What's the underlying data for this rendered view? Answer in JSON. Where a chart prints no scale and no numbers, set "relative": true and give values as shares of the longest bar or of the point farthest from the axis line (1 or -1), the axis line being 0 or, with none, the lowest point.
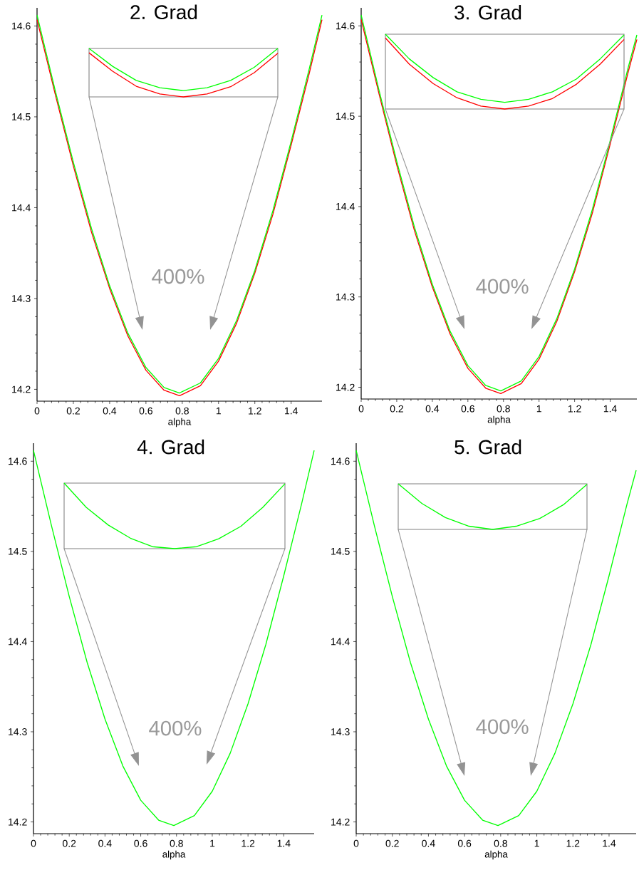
{
  "chart_data": [
    {
      "type": "line",
      "title": "2. Grad",
      "xlabel": "alpha",
      "x": [
        0,
        0.1,
        0.2,
        0.3,
        0.4,
        0.5,
        0.6,
        0.7,
        0.785,
        0.9,
        1.0,
        1.1,
        1.2,
        1.3,
        1.4,
        1.5,
        1.57
      ],
      "series": [
        {
          "color": "#ff0000",
          "values": [
            14.607,
            14.525,
            14.446,
            14.373,
            14.311,
            14.259,
            14.221,
            14.199,
            14.193,
            14.204,
            14.231,
            14.273,
            14.328,
            14.393,
            14.469,
            14.548,
            14.607
          ]
        },
        {
          "color": "#00ff00",
          "values": [
            14.612,
            14.529,
            14.45,
            14.377,
            14.314,
            14.262,
            14.224,
            14.202,
            14.196,
            14.207,
            14.234,
            14.276,
            14.331,
            14.397,
            14.473,
            14.553,
            14.612
          ]
        }
      ],
      "xlim": [
        0,
        1.57
      ],
      "ylim": [
        14.187,
        14.62
      ],
      "xticks": [
        0,
        0.2,
        0.4,
        0.6,
        0.8,
        1,
        1.2,
        1.4
      ],
      "yticks": [
        14.2,
        14.3,
        14.4,
        14.5,
        14.6
      ],
      "annotations": [
        "400%"
      ]
    },
    {
      "type": "line",
      "relative": true,
      "tick_labels": false,
      "categories": [
        null,
        null,
        null,
        null,
        null,
        null,
        null,
        null,
        null
      ],
      "series": [
        {
          "color": "#ff0000",
          "values": [
            0.91,
            0.53,
            0.22,
            0.06,
            0,
            0.06,
            0.21,
            0.5,
            0.9
          ]
        },
        {
          "color": "#00ff00",
          "values": [
            1,
            0.63,
            0.34,
            0.19,
            0.13,
            0.19,
            0.34,
            0.61,
            1
          ]
        }
      ]
    },
    {
      "type": "line",
      "title": "3. Grad",
      "xlabel": "alpha",
      "x": [
        0,
        0.1,
        0.2,
        0.3,
        0.4,
        0.5,
        0.6,
        0.7,
        0.785,
        0.9,
        1.0,
        1.1,
        1.2,
        1.3,
        1.4,
        1.5,
        1.55
      ],
      "series": [
        {
          "color": "#ff0000",
          "values": [
            14.607,
            14.525,
            14.446,
            14.373,
            14.311,
            14.259,
            14.221,
            14.199,
            14.193,
            14.204,
            14.231,
            14.273,
            14.328,
            14.393,
            14.469,
            14.548,
            14.585
          ]
        },
        {
          "color": "#00ff00",
          "values": [
            14.612,
            14.529,
            14.45,
            14.377,
            14.314,
            14.262,
            14.224,
            14.202,
            14.196,
            14.207,
            14.234,
            14.276,
            14.331,
            14.397,
            14.473,
            14.553,
            14.59
          ]
        }
      ],
      "xlim": [
        0,
        1.55
      ],
      "ylim": [
        14.187,
        14.62
      ],
      "xticks": [
        0,
        0.2,
        0.4,
        0.6,
        0.8,
        1,
        1.2,
        1.4
      ],
      "yticks": [
        14.2,
        14.3,
        14.4,
        14.5,
        14.6
      ],
      "annotations": [
        "400%"
      ]
    },
    {
      "type": "line",
      "relative": true,
      "tick_labels": false,
      "categories": [
        null,
        null,
        null,
        null,
        null,
        null,
        null,
        null,
        null,
        null,
        null
      ],
      "series": [
        {
          "color": "#ff0000",
          "values": [
            0.95,
            0.6,
            0.34,
            0.15,
            0.04,
            0,
            0.04,
            0.14,
            0.33,
            0.6,
            0.93
          ]
        },
        {
          "color": "#00ff00",
          "values": [
            1,
            0.67,
            0.42,
            0.23,
            0.13,
            0.09,
            0.13,
            0.23,
            0.4,
            0.67,
            0.99
          ]
        }
      ]
    },
    {
      "type": "line",
      "title": "4. Grad",
      "xlabel": "alpha",
      "x": [
        0,
        0.1,
        0.2,
        0.3,
        0.4,
        0.5,
        0.6,
        0.7,
        0.785,
        0.9,
        1.0,
        1.1,
        1.2,
        1.3,
        1.4,
        1.5,
        1.57
      ],
      "series": [
        {
          "color": "#00ff00",
          "values": [
            14.612,
            14.529,
            14.45,
            14.377,
            14.314,
            14.262,
            14.224,
            14.202,
            14.196,
            14.207,
            14.234,
            14.276,
            14.331,
            14.397,
            14.473,
            14.553,
            14.612
          ]
        }
      ],
      "xlim": [
        0,
        1.57
      ],
      "ylim": [
        14.187,
        14.62
      ],
      "xticks": [
        0,
        0.2,
        0.4,
        0.6,
        0.8,
        1,
        1.2,
        1.4
      ],
      "yticks": [
        14.2,
        14.3,
        14.4,
        14.5,
        14.6
      ],
      "annotations": [
        "400%"
      ]
    },
    {
      "type": "line",
      "relative": true,
      "tick_labels": false,
      "categories": [
        null,
        null,
        null,
        null,
        null,
        null,
        null,
        null,
        null,
        null,
        null
      ],
      "series": [
        {
          "color": "#00ff00",
          "values": [
            1,
            0.63,
            0.36,
            0.16,
            0.03,
            0,
            0.03,
            0.15,
            0.34,
            0.63,
            0.99
          ]
        }
      ]
    },
    {
      "type": "line",
      "title": "5. Grad",
      "xlabel": "alpha",
      "x": [
        0,
        0.1,
        0.2,
        0.3,
        0.4,
        0.5,
        0.6,
        0.7,
        0.785,
        0.9,
        1.0,
        1.1,
        1.2,
        1.3,
        1.4,
        1.5,
        1.55
      ],
      "series": [
        {
          "color": "#00ff00",
          "values": [
            14.612,
            14.529,
            14.45,
            14.377,
            14.314,
            14.262,
            14.224,
            14.202,
            14.196,
            14.207,
            14.234,
            14.276,
            14.331,
            14.397,
            14.473,
            14.553,
            14.59
          ]
        }
      ],
      "xlim": [
        0,
        1.55
      ],
      "ylim": [
        14.187,
        14.62
      ],
      "xticks": [
        0,
        0.2,
        0.4,
        0.6,
        0.8,
        1,
        1.2,
        1.4
      ],
      "yticks": [
        14.2,
        14.3,
        14.4,
        14.5,
        14.6
      ],
      "annotations": [
        "400%"
      ]
    },
    {
      "type": "line",
      "relative": true,
      "tick_labels": false,
      "categories": [
        null,
        null,
        null,
        null,
        null,
        null,
        null,
        null,
        null
      ],
      "series": [
        {
          "color": "#00ff00",
          "values": [
            1,
            0.57,
            0.26,
            0.07,
            0,
            0.07,
            0.24,
            0.54,
            0.99
          ]
        }
      ]
    }
  ]
}
